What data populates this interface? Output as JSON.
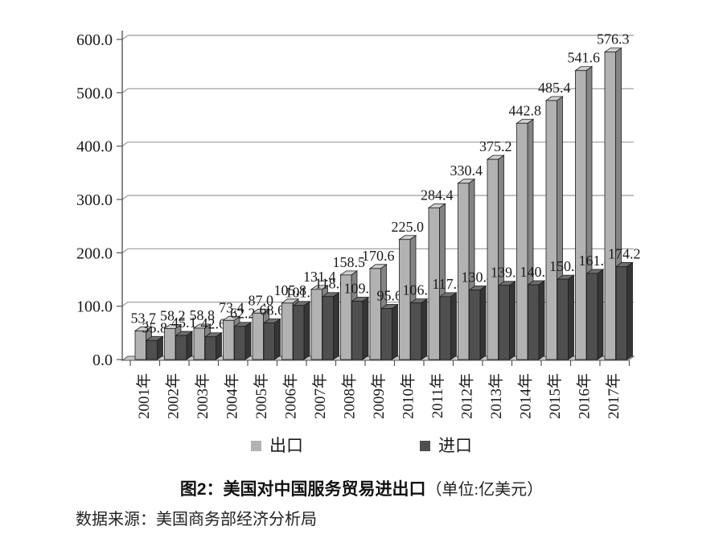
{
  "chart_data": {
    "type": "bar",
    "title": "图2：美国对中国服务贸易进出口",
    "title_unit": "（单位:亿美元）",
    "source": "数据来源：美国商务部经济分析局",
    "categories": [
      "2001年",
      "2002年",
      "2003年",
      "2004年",
      "2005年",
      "2006年",
      "2007年",
      "2008年",
      "2009年",
      "2010年",
      "2011年",
      "2012年",
      "2013年",
      "2014年",
      "2015年",
      "2016年",
      "2017年"
    ],
    "series": [
      {
        "name": "出口",
        "values": [
          53.7,
          58.2,
          58.8,
          73.4,
          87.0,
          105.8,
          131.4,
          158.5,
          170.6,
          225.0,
          284.4,
          330.4,
          375.2,
          442.8,
          485.4,
          541.6,
          576.3
        ],
        "color_front": "#b2b2b2",
        "color_side": "#848484",
        "color_top": "#cfcfcf"
      },
      {
        "name": "进口",
        "values": [
          35.8,
          45.1,
          42.6,
          62.2,
          68.6,
          101.4,
          118.0,
          109.2,
          95.6,
          106.1,
          117.8,
          130.4,
          139.1,
          140.2,
          150.6,
          161.4,
          174.2
        ],
        "color_front": "#4f4f4f",
        "color_side": "#353535",
        "color_top": "#6e6e6e"
      }
    ],
    "ylim": [
      0,
      600
    ],
    "ytick_values": [
      0,
      100,
      200,
      300,
      400,
      500,
      600
    ],
    "ytick_labels": [
      "0.0",
      "100.0",
      "200.0",
      "300.0",
      "400.0",
      "500.0",
      "600.0"
    ],
    "grid": true,
    "legend_position": "bottom",
    "data_labels": true,
    "colors": {
      "gridline": "#9a9a9a",
      "axis": "#555555",
      "floor_fill": "#c8c8c8",
      "floor_stroke": "#555555",
      "bar_outline": "#1c1c1c",
      "text": "#1a1a1a"
    }
  }
}
